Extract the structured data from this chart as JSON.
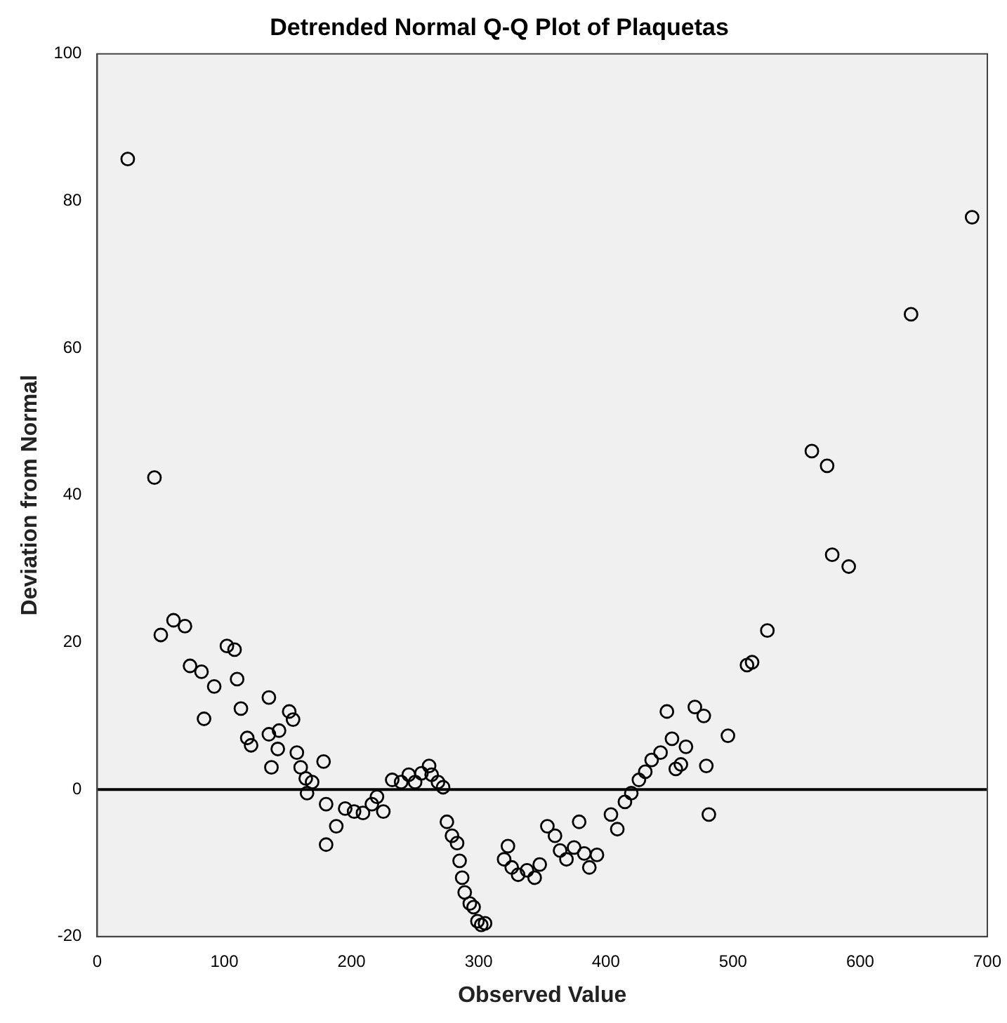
{
  "chart_data": {
    "type": "scatter",
    "title": "Detrended Normal Q-Q Plot of Plaquetas",
    "xlabel": "Observed Value",
    "ylabel": "Deviation from Normal",
    "xlim": [
      0,
      700
    ],
    "xticks": [
      0,
      100,
      200,
      300,
      400,
      500,
      600,
      700
    ],
    "ylim": [
      -20,
      100
    ],
    "yticks": [
      -20,
      0,
      20,
      40,
      60,
      80,
      100
    ],
    "grid": false,
    "legend": false,
    "marker": "circle",
    "ref_lines": [
      {
        "axis": "y",
        "value": 0,
        "color": "#000000"
      }
    ],
    "series": [
      {
        "color": "#000000",
        "x": [
          24,
          45,
          50,
          60,
          69,
          73,
          82,
          84,
          92,
          102,
          108,
          110,
          113,
          118,
          121,
          135,
          135,
          137,
          143,
          142,
          151,
          154,
          157,
          160,
          164,
          165,
          169,
          178,
          180,
          180,
          188,
          195,
          202,
          209,
          216,
          220,
          225,
          232,
          239,
          245,
          250,
          255,
          261,
          263,
          268,
          272,
          275,
          279,
          283,
          285,
          287,
          289,
          293,
          296,
          299,
          302,
          305,
          320,
          323,
          326,
          331,
          338,
          344,
          348,
          354,
          360,
          364,
          369,
          375,
          379,
          383,
          387,
          393,
          404,
          409,
          415,
          420,
          426,
          431,
          436,
          443,
          448,
          452,
          455,
          459,
          463,
          470,
          477,
          479,
          481,
          496,
          511,
          515,
          527,
          562,
          574,
          578,
          591,
          640,
          688
        ],
        "values": [
          85.7,
          42.4,
          21,
          23,
          22.2,
          16.8,
          16,
          9.6,
          14,
          19.5,
          19,
          15,
          11,
          7,
          6,
          12.5,
          7.5,
          3,
          8,
          5.5,
          10.6,
          9.5,
          5,
          3,
          1.5,
          -0.5,
          1,
          3.8,
          -2,
          -7.5,
          -5,
          -2.6,
          -3,
          -3.2,
          -2,
          -1,
          -3,
          1.3,
          1,
          2,
          1,
          2.2,
          3.2,
          2,
          1,
          0.3,
          -4.4,
          -6.3,
          -7.3,
          -9.7,
          -12,
          -14,
          -15.5,
          -16,
          -17.9,
          -18.4,
          -18.2,
          -9.5,
          -7.7,
          -10.6,
          -11.6,
          -11,
          -12,
          -10.2,
          -5,
          -6.3,
          -8.3,
          -9.5,
          -7.9,
          -4.4,
          -8.7,
          -10.6,
          -8.9,
          -3.4,
          -5.4,
          -1.7,
          -0.5,
          1.3,
          2.4,
          4,
          5,
          10.6,
          6.9,
          2.8,
          3.4,
          5.8,
          11.2,
          10,
          3.2,
          -3.4,
          7.3,
          16.9,
          17.3,
          21.6,
          46,
          44,
          31.9,
          30.3,
          64.6,
          77.8
        ]
      }
    ]
  }
}
